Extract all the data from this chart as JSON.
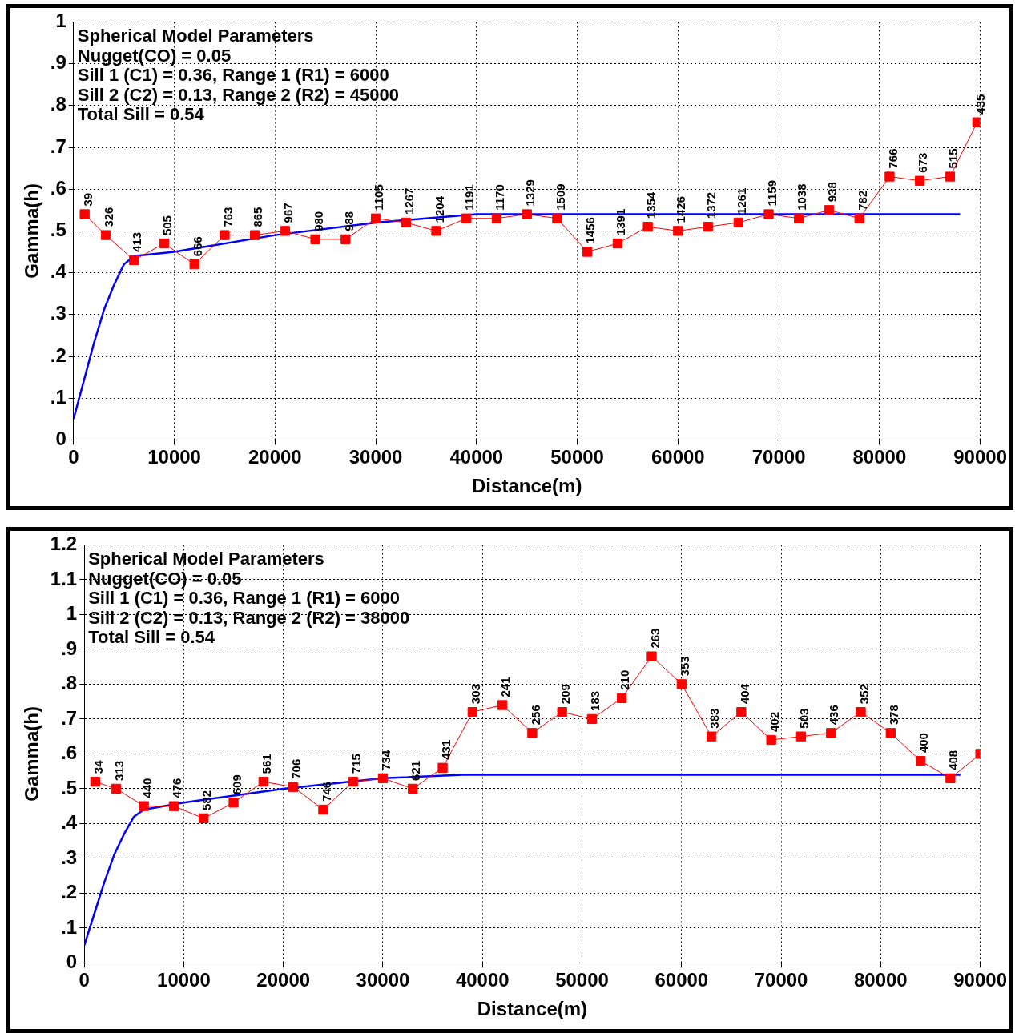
{
  "chart_data": [
    {
      "type": "line",
      "xlabel": "Distance(m)",
      "ylabel": "Gamma(h)",
      "xlim": [
        0,
        90000
      ],
      "xticks": [
        0,
        10000,
        20000,
        30000,
        40000,
        50000,
        60000,
        70000,
        80000,
        90000
      ],
      "ylim": [
        0,
        1
      ],
      "yticks": [
        0,
        {
          "value": 0.1,
          "label": ".1"
        },
        {
          "value": 0.2,
          "label": ".2"
        },
        {
          "value": 0.3,
          "label": ".3"
        },
        {
          "value": 0.4,
          "label": ".4"
        },
        {
          "value": 0.5,
          "label": ".5"
        },
        {
          "value": 0.6,
          "label": ".6"
        },
        {
          "value": 0.7,
          "label": ".7"
        },
        {
          "value": 0.8,
          "label": ".8"
        },
        {
          "value": 0.9,
          "label": ".9"
        },
        1
      ],
      "grid": true,
      "legend": false,
      "annotations": [
        "Spherical Model Parameters",
        "Nugget(CO) = 0.05",
        "Sill 1 (C1) = 0.36, Range 1 (R1) = 6000",
        "Sill 2 (C2) = 0.13, Range 2 (R2) = 45000",
        "Total Sill = 0.54",
        {
          "text": "39",
          "x": 1100,
          "y": 0.54
        },
        {
          "text": "326",
          "x": 3200,
          "y": 0.49
        },
        {
          "text": "413",
          "x": 6000,
          "y": 0.43
        },
        {
          "text": "505",
          "x": 9000,
          "y": 0.47
        },
        {
          "text": "666",
          "x": 12000,
          "y": 0.42
        },
        {
          "text": "763",
          "x": 15000,
          "y": 0.49
        },
        {
          "text": "865",
          "x": 18000,
          "y": 0.49
        },
        {
          "text": "967",
          "x": 21000,
          "y": 0.5
        },
        {
          "text": "980",
          "x": 24000,
          "y": 0.48
        },
        {
          "text": "988",
          "x": 27000,
          "y": 0.48
        },
        {
          "text": "1105",
          "x": 30000,
          "y": 0.53
        },
        {
          "text": "1267",
          "x": 33000,
          "y": 0.52
        },
        {
          "text": "1204",
          "x": 36000,
          "y": 0.5
        },
        {
          "text": "1191",
          "x": 39000,
          "y": 0.53
        },
        {
          "text": "1170",
          "x": 42000,
          "y": 0.53
        },
        {
          "text": "1329",
          "x": 45000,
          "y": 0.54
        },
        {
          "text": "1509",
          "x": 48000,
          "y": 0.53
        },
        {
          "text": "1456",
          "x": 51000,
          "y": 0.45
        },
        {
          "text": "1391",
          "x": 54000,
          "y": 0.47
        },
        {
          "text": "1354",
          "x": 57000,
          "y": 0.51
        },
        {
          "text": "1426",
          "x": 60000,
          "y": 0.5
        },
        {
          "text": "1372",
          "x": 63000,
          "y": 0.51
        },
        {
          "text": "1261",
          "x": 66000,
          "y": 0.52
        },
        {
          "text": "1159",
          "x": 69000,
          "y": 0.54
        },
        {
          "text": "1038",
          "x": 72000,
          "y": 0.53
        },
        {
          "text": "938",
          "x": 75000,
          "y": 0.55
        },
        {
          "text": "782",
          "x": 78000,
          "y": 0.53
        },
        {
          "text": "766",
          "x": 81000,
          "y": 0.63
        },
        {
          "text": "673",
          "x": 84000,
          "y": 0.62
        },
        {
          "text": "515",
          "x": 87000,
          "y": 0.63
        },
        {
          "text": "435",
          "x": 89700,
          "y": 0.76
        }
      ],
      "series": [
        {
          "color": "#ff0000",
          "marker": "square",
          "x": [
            1100,
            3200,
            6000,
            9000,
            12000,
            15000,
            18000,
            21000,
            24000,
            27000,
            30000,
            33000,
            36000,
            39000,
            42000,
            45000,
            48000,
            51000,
            54000,
            57000,
            60000,
            63000,
            66000,
            69000,
            72000,
            75000,
            78000,
            81000,
            84000,
            87000,
            89700
          ],
          "values": [
            0.54,
            0.49,
            0.43,
            0.47,
            0.42,
            0.49,
            0.49,
            0.5,
            0.48,
            0.48,
            0.53,
            0.52,
            0.5,
            0.53,
            0.53,
            0.54,
            0.53,
            0.45,
            0.47,
            0.51,
            0.5,
            0.51,
            0.52,
            0.54,
            0.53,
            0.55,
            0.53,
            0.63,
            0.62,
            0.63,
            0.76
          ]
        },
        {
          "color": "#0000ff",
          "marker": "none",
          "x": [
            0,
            1000,
            2000,
            3000,
            4000,
            5000,
            6000,
            10000,
            20000,
            30000,
            40000,
            45000,
            88000
          ],
          "values": [
            0.05,
            0.14,
            0.23,
            0.31,
            0.37,
            0.42,
            0.44,
            0.45,
            0.49,
            0.52,
            0.54,
            0.54,
            0.54
          ]
        }
      ]
    },
    {
      "type": "line",
      "xlabel": "Distance(m)",
      "ylabel": "Gamma(h)",
      "xlim": [
        0,
        90000
      ],
      "xticks": [
        0,
        10000,
        20000,
        30000,
        40000,
        50000,
        60000,
        70000,
        80000,
        90000
      ],
      "ylim": [
        0,
        1.2
      ],
      "yticks": [
        0,
        {
          "value": 0.1,
          "label": ".1"
        },
        {
          "value": 0.2,
          "label": ".2"
        },
        {
          "value": 0.3,
          "label": ".3"
        },
        {
          "value": 0.4,
          "label": ".4"
        },
        {
          "value": 0.5,
          "label": ".5"
        },
        {
          "value": 0.6,
          "label": ".6"
        },
        {
          "value": 0.7,
          "label": ".7"
        },
        {
          "value": 0.8,
          "label": ".8"
        },
        {
          "value": 0.9,
          "label": ".9"
        },
        1,
        1.1,
        1.2
      ],
      "grid": true,
      "legend": false,
      "annotations": [
        "Spherical Model Parameters",
        "Nugget(CO) = 0.05",
        "Sill 1 (C1) = 0.36, Range 1 (R1) = 6000",
        "Sill 2 (C2) = 0.13, Range 2 (R2) = 38000",
        "Total Sill = 0.54",
        {
          "text": "34",
          "x": 1100,
          "y": 0.52
        },
        {
          "text": "313",
          "x": 3200,
          "y": 0.5
        },
        {
          "text": "440",
          "x": 6000,
          "y": 0.45
        },
        {
          "text": "476",
          "x": 9000,
          "y": 0.45
        },
        {
          "text": "582",
          "x": 12000,
          "y": 0.415
        },
        {
          "text": "609",
          "x": 15000,
          "y": 0.46
        },
        {
          "text": "561",
          "x": 18000,
          "y": 0.52
        },
        {
          "text": "706",
          "x": 21000,
          "y": 0.505
        },
        {
          "text": "746",
          "x": 24000,
          "y": 0.44
        },
        {
          "text": "715",
          "x": 27000,
          "y": 0.52
        },
        {
          "text": "734",
          "x": 30000,
          "y": 0.53
        },
        {
          "text": "621",
          "x": 33000,
          "y": 0.5
        },
        {
          "text": "431",
          "x": 36000,
          "y": 0.56
        },
        {
          "text": "303",
          "x": 39000,
          "y": 0.72
        },
        {
          "text": "241",
          "x": 42000,
          "y": 0.74
        },
        {
          "text": "256",
          "x": 45000,
          "y": 0.66
        },
        {
          "text": "209",
          "x": 48000,
          "y": 0.72
        },
        {
          "text": "183",
          "x": 51000,
          "y": 0.7
        },
        {
          "text": "210",
          "x": 54000,
          "y": 0.76
        },
        {
          "text": "263",
          "x": 57000,
          "y": 0.88
        },
        {
          "text": "353",
          "x": 60000,
          "y": 0.8
        },
        {
          "text": "383",
          "x": 63000,
          "y": 0.65
        },
        {
          "text": "404",
          "x": 66000,
          "y": 0.72
        },
        {
          "text": "402",
          "x": 69000,
          "y": 0.64
        },
        {
          "text": "503",
          "x": 72000,
          "y": 0.65
        },
        {
          "text": "436",
          "x": 75000,
          "y": 0.66
        },
        {
          "text": "352",
          "x": 78000,
          "y": 0.72
        },
        {
          "text": "378",
          "x": 81000,
          "y": 0.66
        },
        {
          "text": "400",
          "x": 84000,
          "y": 0.58
        },
        {
          "text": "408",
          "x": 87000,
          "y": 0.53
        }
      ],
      "series": [
        {
          "color": "#ff0000",
          "marker": "square",
          "x": [
            1100,
            3200,
            6000,
            9000,
            12000,
            15000,
            18000,
            21000,
            24000,
            27000,
            30000,
            33000,
            36000,
            39000,
            42000,
            45000,
            48000,
            51000,
            54000,
            57000,
            60000,
            63000,
            66000,
            69000,
            72000,
            75000,
            78000,
            81000,
            84000,
            87000,
            90000
          ],
          "values": [
            0.52,
            0.5,
            0.45,
            0.45,
            0.415,
            0.46,
            0.52,
            0.505,
            0.44,
            0.52,
            0.53,
            0.5,
            0.56,
            0.72,
            0.74,
            0.66,
            0.72,
            0.7,
            0.76,
            0.88,
            0.8,
            0.65,
            0.72,
            0.64,
            0.65,
            0.66,
            0.72,
            0.66,
            0.58,
            0.53,
            0.6
          ]
        },
        {
          "color": "#0000ff",
          "marker": "none",
          "x": [
            0,
            1000,
            2000,
            3000,
            4000,
            5000,
            6000,
            10000,
            20000,
            30000,
            38000,
            88000
          ],
          "values": [
            0.05,
            0.14,
            0.23,
            0.31,
            0.37,
            0.42,
            0.44,
            0.46,
            0.5,
            0.53,
            0.54,
            0.54
          ]
        }
      ]
    }
  ]
}
